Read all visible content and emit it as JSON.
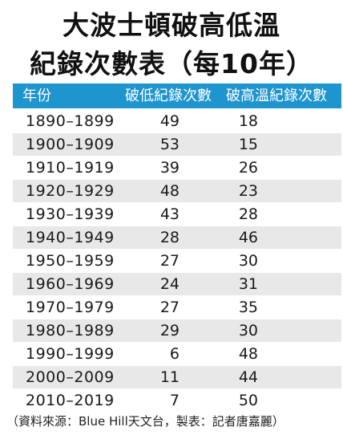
{
  "title": {
    "line1": "大波士頓破高低溫",
    "line2": "紀錄次數表（每10年）"
  },
  "header": {
    "year": "年份",
    "low": "破低紀錄次數",
    "high": "破高溫紀錄次數"
  },
  "colors": {
    "header_bg": "#1f95d0",
    "stripe": "#e8e8e8"
  },
  "chart_data": {
    "type": "table",
    "columns": [
      "年份",
      "破低紀錄次數",
      "破高溫紀錄次數"
    ],
    "rows": [
      {
        "year": "1890–1899",
        "low": "49",
        "high": "18"
      },
      {
        "year": "1900–1909",
        "low": "53",
        "high": "15"
      },
      {
        "year": "1910–1919",
        "low": "39",
        "high": "26"
      },
      {
        "year": "1920–1929",
        "low": "48",
        "high": "23"
      },
      {
        "year": "1930–1939",
        "low": "43",
        "high": "28"
      },
      {
        "year": "1940–1949",
        "low": "28",
        "high": "46"
      },
      {
        "year": "1950–1959",
        "low": "27",
        "high": "30"
      },
      {
        "year": "1960–1969",
        "low": "24",
        "high": "31"
      },
      {
        "year": "1970–1979",
        "low": "27",
        "high": "35"
      },
      {
        "year": "1980–1989",
        "low": "29",
        "high": "30"
      },
      {
        "year": "1990–1999",
        "low": "6",
        "high": "48"
      },
      {
        "year": "2000–2009",
        "low": "11",
        "high": "44"
      },
      {
        "year": "2010–2019",
        "low": "7",
        "high": "50"
      }
    ]
  },
  "footer": "（資料來源：Blue Hill天文台，製表：記者唐嘉麗）"
}
